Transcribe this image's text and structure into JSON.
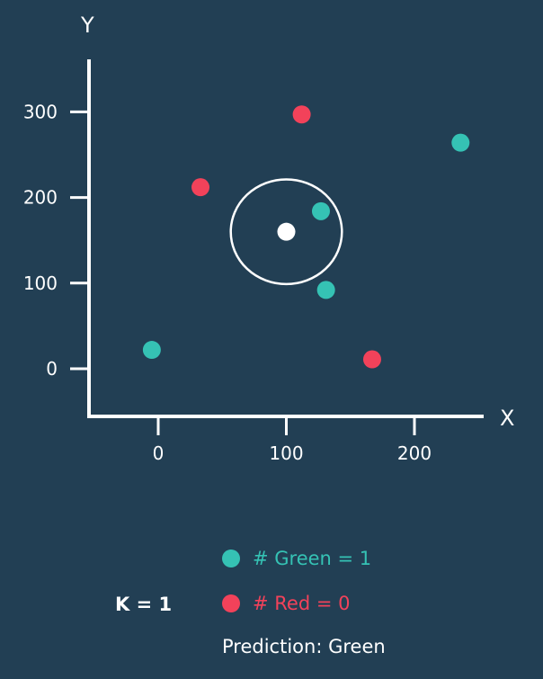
{
  "chart_data": {
    "type": "scatter",
    "xlabel": "X",
    "ylabel": "Y",
    "x_ticks": [
      "0",
      "100",
      "200"
    ],
    "y_ticks": [
      "0",
      "100",
      "200",
      "300"
    ],
    "series": [
      {
        "name": "Green",
        "color": "#35c2b4",
        "points": [
          {
            "x": -5,
            "y": 22
          },
          {
            "x": 127,
            "y": 184
          },
          {
            "x": 131,
            "y": 92
          },
          {
            "x": 236,
            "y": 264
          }
        ]
      },
      {
        "name": "Red",
        "color": "#f2425a",
        "points": [
          {
            "x": 33,
            "y": 212
          },
          {
            "x": 112,
            "y": 297
          },
          {
            "x": 167,
            "y": 11
          }
        ]
      }
    ],
    "query_point": {
      "x": 100,
      "y": 160,
      "color": "#ffffff"
    },
    "neighbor_circle": {
      "center_x": 100,
      "center_y": 160,
      "radius": 60
    }
  },
  "legend": {
    "green_label": "# Green = 1",
    "red_label": "# Red = 0",
    "green_color": "#35c2b4",
    "red_color": "#f2425a"
  },
  "k_label": "K = 1",
  "prediction_label": "Prediction: Green"
}
